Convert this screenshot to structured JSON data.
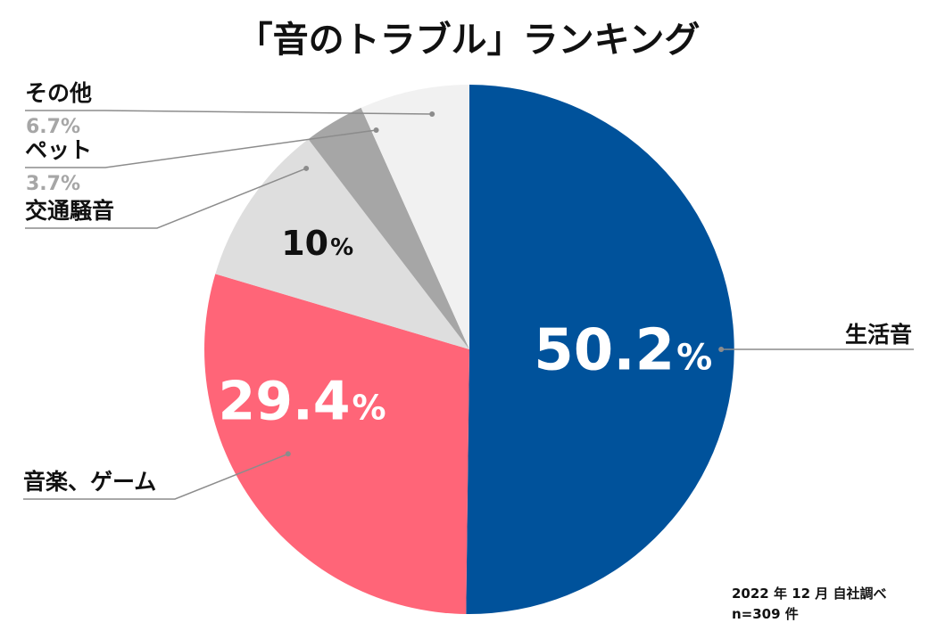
{
  "chart_data": {
    "type": "pie",
    "title": "「音のトラブル」ランキング",
    "slices": [
      {
        "label": "生活音",
        "value": 50.2,
        "value_label": "50.2",
        "unit": "%",
        "color": "#00529b",
        "text_color": "#ffffff",
        "value_position": "inside"
      },
      {
        "label": "音楽、ゲーム",
        "value": 29.4,
        "value_label": "29.4",
        "unit": "%",
        "color": "#ff6578",
        "text_color": "#ffffff",
        "value_position": "inside"
      },
      {
        "label": "交通騒音",
        "value": 10,
        "value_label": "10",
        "unit": "%",
        "color": "#dedede",
        "text_color": "#111111",
        "value_position": "inside"
      },
      {
        "label": "ペット",
        "value": 3.7,
        "value_label": "3.7%",
        "unit": "%",
        "color": "#a6a6a6",
        "text_color": "#a6a6a6",
        "value_position": "outside"
      },
      {
        "label": "その他",
        "value": 6.7,
        "value_label": "6.7%",
        "unit": "%",
        "color": "#f1f1f1",
        "text_color": "#a6a6a6",
        "value_position": "outside"
      }
    ],
    "footnote": {
      "line1": "2022 年 12 月  自社調べ",
      "line2": "n=309 件"
    },
    "colors": {
      "leader_line": "#8c8c8c",
      "title": "#111111"
    }
  }
}
